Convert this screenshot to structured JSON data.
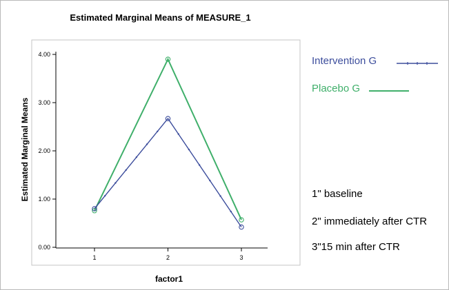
{
  "chart_data": {
    "type": "line",
    "title": "Estimated Marginal Means of MEASURE_1",
    "xlabel": "factor1",
    "ylabel": "Estimated Marginal Means",
    "categories": [
      "1",
      "2",
      "3"
    ],
    "y_ticks": [
      "0.00",
      "1.00",
      "2.00",
      "3.00",
      "4.00"
    ],
    "ylim": [
      0,
      4
    ],
    "grid": false,
    "legend_position": "right",
    "series": [
      {
        "name": "Intervention G",
        "color": "#3c4d9c",
        "values": [
          0.8,
          2.67,
          0.42
        ]
      },
      {
        "name": "Placebo G",
        "color": "#3faf6a",
        "values": [
          0.76,
          3.9,
          0.57
        ]
      }
    ]
  },
  "notes": [
    "1\" baseline",
    "2\" immediately after CTR",
    "3\"15 min after CTR"
  ]
}
